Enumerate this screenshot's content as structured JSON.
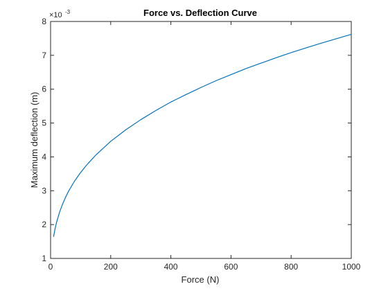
{
  "chart_data": {
    "type": "line",
    "title": "Force vs. Deflection Curve",
    "xlabel": "Force (N)",
    "ylabel": "Maximum deflection (m)",
    "xlim": [
      0,
      1000
    ],
    "ylim": [
      0.001,
      0.008
    ],
    "y_exponent_base": "×10",
    "y_exponent_power": "-3",
    "x_ticks": [
      0,
      200,
      400,
      600,
      800,
      1000
    ],
    "x_tick_labels": [
      "0",
      "200",
      "400",
      "600",
      "800",
      "1000"
    ],
    "y_ticks": [
      0.001,
      0.002,
      0.003,
      0.004,
      0.005,
      0.006,
      0.007,
      0.008
    ],
    "y_tick_labels": [
      "1",
      "2",
      "3",
      "4",
      "5",
      "6",
      "7",
      "8"
    ],
    "grid": false,
    "series": [
      {
        "color": "#0072bd",
        "x": [
          10,
          15,
          20,
          30,
          40,
          50,
          60,
          80,
          100,
          120,
          150,
          200,
          250,
          300,
          350,
          400,
          450,
          500,
          550,
          600,
          650,
          700,
          750,
          800,
          850,
          900,
          950,
          1000
        ],
        "y": [
          0.00164,
          0.00188,
          0.00207,
          0.00237,
          0.00261,
          0.00281,
          0.00299,
          0.00329,
          0.00354,
          0.00376,
          0.00405,
          0.00446,
          0.0048,
          0.0051,
          0.00537,
          0.00562,
          0.00584,
          0.00605,
          0.00625,
          0.00643,
          0.00661,
          0.00677,
          0.00693,
          0.00708,
          0.00722,
          0.00736,
          0.00749,
          0.00762
        ]
      }
    ]
  }
}
